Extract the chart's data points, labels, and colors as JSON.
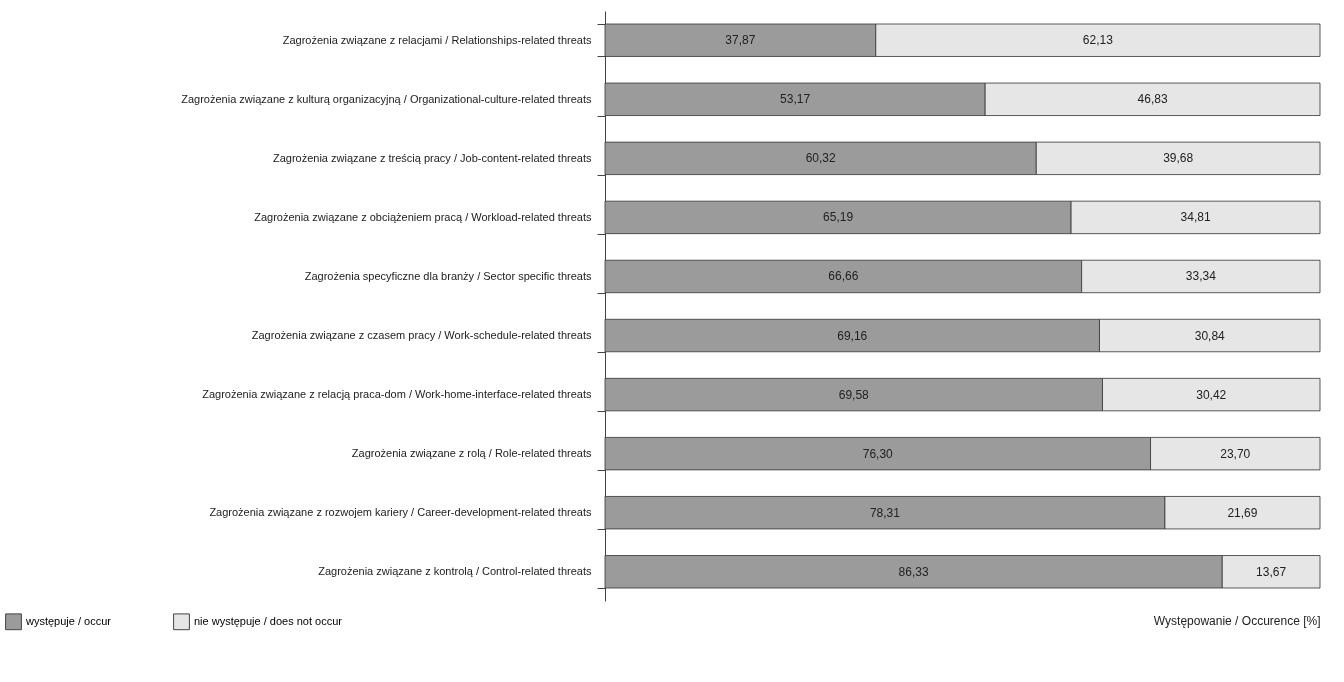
{
  "chart_data": {
    "type": "bar",
    "orientation": "horizontal",
    "stacked": true,
    "categories": [
      "Zagrożenia związane z relacjami / Relationships-related threats",
      "Zagrożenia związane z kulturą organizacyjną / Organizational-culture-related threats",
      "Zagrożenia związane z treścią pracy / Job-content-related threats",
      "Zagrożenia związane z obciążeniem pracą / Workload-related threats",
      "Zagrożenia specyficzne dla branży / Sector specific threats",
      "Zagrożenia związane z czasem pracy / Work-schedule-related threats",
      "Zagrożenia związane z relacją praca-dom / Work-home-interface-related threats",
      "Zagrożenia związane z rolą / Role-related threats",
      "Zagrożenia związane z rozwojem kariery / Career-development-related threats",
      "Zagrożenia związane z kontrolą / Control-related threats"
    ],
    "series": [
      {
        "name": "występuje / occur",
        "color": "#9b9b9b",
        "values": [
          37.87,
          53.17,
          60.32,
          65.19,
          66.66,
          69.16,
          69.58,
          76.3,
          78.31,
          86.33
        ],
        "value_labels": [
          "37,87",
          "53,17",
          "60,32",
          "65,19",
          "66,66",
          "69,16",
          "69,58",
          "76,30",
          "78,31",
          "86,33"
        ]
      },
      {
        "name": "nie występuje / does not occur",
        "color": "#e6e6e6",
        "values": [
          62.13,
          46.83,
          39.68,
          34.81,
          33.34,
          30.84,
          30.42,
          23.7,
          21.69,
          13.67
        ],
        "value_labels": [
          "62,13",
          "46,83",
          "39,68",
          "34,81",
          "33,34",
          "30,84",
          "30,42",
          "23,70",
          "21,69",
          "13,67"
        ]
      }
    ],
    "xlabel": "Występowanie / Occurence [%]",
    "xlim": [
      0,
      100
    ],
    "tick_labels": "y",
    "legend": "bottom left"
  }
}
